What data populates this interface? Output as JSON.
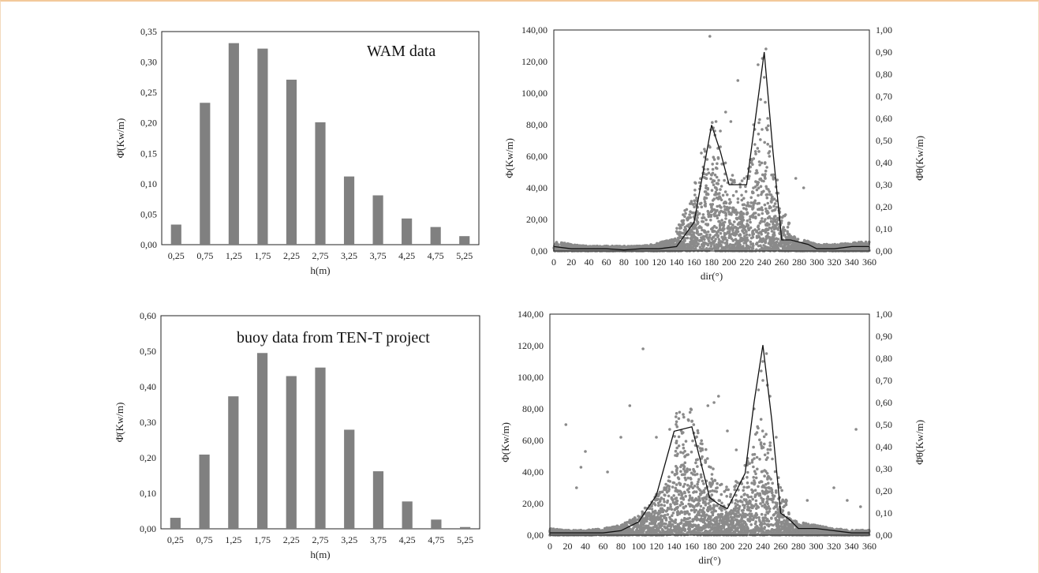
{
  "chart_data": [
    {
      "type": "bar",
      "annotation": "WAM data",
      "xlabel": "h(m)",
      "ylabel": "Φ̄(Kw/m)",
      "categories": [
        "0,25",
        "0,75",
        "1,25",
        "1,75",
        "2,25",
        "2,75",
        "3,25",
        "3,75",
        "4,25",
        "4,75",
        "5,25"
      ],
      "values": [
        0.033,
        0.233,
        0.331,
        0.322,
        0.271,
        0.201,
        0.112,
        0.081,
        0.043,
        0.029,
        0.014
      ],
      "ylim": [
        0,
        0.35
      ],
      "yticks": [
        "0,00",
        "0,05",
        "0,10",
        "0,15",
        "0,20",
        "0,25",
        "0,30",
        "0,35"
      ],
      "color": "#808080"
    },
    {
      "type": "scatter",
      "xlabel": "dir(°)",
      "ylabel": "Φ(Kw/m)",
      "y2label": "Φ̄θ(Kw/m)",
      "xlim": [
        0,
        360
      ],
      "ylim": [
        0,
        140
      ],
      "y2lim": [
        0,
        1
      ],
      "xticks": [
        "0",
        "20",
        "40",
        "60",
        "80",
        "100",
        "120",
        "140",
        "160",
        "180",
        "200",
        "220",
        "240",
        "260",
        "280",
        "300",
        "320",
        "340",
        "360"
      ],
      "yticks": [
        "0,00",
        "20,00",
        "40,00",
        "60,00",
        "80,00",
        "100,00",
        "120,00",
        "140,00"
      ],
      "y2ticks": [
        "0,00",
        "0,10",
        "0,20",
        "0,30",
        "0,40",
        "0,50",
        "0,60",
        "0,70",
        "0,80",
        "0,90",
        "1,00"
      ],
      "line": {
        "x": [
          0,
          20,
          40,
          60,
          80,
          100,
          120,
          140,
          160,
          170,
          180,
          190,
          200,
          210,
          220,
          230,
          240,
          250,
          260,
          270,
          280,
          290,
          300,
          320,
          340,
          360
        ],
        "y": [
          0.02,
          0.01,
          0.01,
          0.01,
          0.005,
          0.01,
          0.01,
          0.02,
          0.13,
          0.35,
          0.57,
          0.45,
          0.3,
          0.3,
          0.3,
          0.6,
          0.9,
          0.45,
          0.05,
          0.05,
          0.04,
          0.03,
          0.01,
          0.01,
          0.02,
          0.02
        ]
      },
      "scatter_profile": {
        "x": [
          0,
          20,
          40,
          60,
          80,
          100,
          120,
          140,
          150,
          160,
          170,
          180,
          190,
          200,
          210,
          220,
          230,
          240,
          250,
          260,
          270,
          280,
          290,
          300,
          320,
          340,
          360
        ],
        "y": [
          6,
          4,
          3,
          3,
          3,
          3,
          5,
          8,
          14,
          22,
          35,
          45,
          32,
          28,
          24,
          26,
          42,
          55,
          30,
          14,
          10,
          7,
          6,
          4,
          4,
          5,
          6
        ]
      },
      "scatter_outliers": {
        "x": [
          178,
          182,
          185,
          190,
          196,
          202,
          210,
          228,
          233,
          236,
          238,
          240,
          242,
          244,
          246,
          250,
          255,
          276,
          285,
          190,
          175,
          245
        ],
        "y": [
          136,
          78,
          82,
          76,
          88,
          82,
          108,
          80,
          118,
          96,
          122,
          110,
          128,
          84,
          60,
          48,
          45,
          46,
          40,
          66,
          58,
          62
        ]
      },
      "scatter_color": "#8a8a8a"
    },
    {
      "type": "bar",
      "annotation": "buoy data from TEN-T project",
      "xlabel": "h(m)",
      "ylabel": "Φ̄(Kw/m)",
      "categories": [
        "0,25",
        "0,75",
        "1,25",
        "1,75",
        "2,25",
        "2,75",
        "3,25",
        "3,75",
        "4,25",
        "4,75",
        "5,25"
      ],
      "values": [
        0.031,
        0.209,
        0.373,
        0.495,
        0.43,
        0.454,
        0.279,
        0.162,
        0.077,
        0.026,
        0.005
      ],
      "ylim": [
        0,
        0.6
      ],
      "yticks": [
        "0,00",
        "0,10",
        "0,20",
        "0,30",
        "0,40",
        "0,50",
        "0,60"
      ],
      "color": "#808080"
    },
    {
      "type": "scatter",
      "xlabel": "dir(°)",
      "ylabel": "Φ(Kw/m)",
      "y2label": "Φ̄θ(Kw/m)",
      "xlim": [
        0,
        360
      ],
      "ylim": [
        0,
        140
      ],
      "y2lim": [
        0,
        1
      ],
      "xticks": [
        "0",
        "20",
        "40",
        "60",
        "80",
        "100",
        "120",
        "140",
        "160",
        "180",
        "200",
        "220",
        "240",
        "260",
        "280",
        "300",
        "320",
        "340",
        "360"
      ],
      "yticks": [
        "0,00",
        "20,00",
        "40,00",
        "60,00",
        "80,00",
        "100,00",
        "120,00",
        "140,00"
      ],
      "y2ticks": [
        "0,00",
        "0,10",
        "0,20",
        "0,30",
        "0,40",
        "0,50",
        "0,60",
        "0,70",
        "0,80",
        "0,90",
        "1,00"
      ],
      "line": {
        "x": [
          0,
          20,
          40,
          60,
          80,
          100,
          120,
          140,
          160,
          170,
          180,
          190,
          200,
          210,
          220,
          230,
          240,
          250,
          260,
          270,
          280,
          290,
          300,
          320,
          340,
          360
        ],
        "y": [
          0.01,
          0.01,
          0.01,
          0.01,
          0.02,
          0.06,
          0.18,
          0.47,
          0.49,
          0.33,
          0.17,
          0.14,
          0.12,
          0.2,
          0.28,
          0.6,
          0.86,
          0.52,
          0.1,
          0.07,
          0.03,
          0.03,
          0.03,
          0.02,
          0.01,
          0.01
        ]
      },
      "scatter_profile": {
        "x": [
          0,
          20,
          40,
          60,
          80,
          100,
          110,
          120,
          130,
          140,
          150,
          160,
          170,
          180,
          190,
          200,
          210,
          220,
          230,
          240,
          250,
          260,
          270,
          280,
          290,
          300,
          320,
          340,
          360
        ],
        "y": [
          4,
          3,
          3,
          4,
          6,
          12,
          18,
          25,
          32,
          40,
          44,
          42,
          34,
          25,
          18,
          16,
          18,
          24,
          34,
          40,
          30,
          16,
          10,
          8,
          7,
          6,
          4,
          3,
          3
        ]
      },
      "scatter_outliers": {
        "x": [
          18,
          30,
          35,
          40,
          65,
          80,
          90,
          105,
          120,
          135,
          150,
          160,
          170,
          178,
          185,
          190,
          200,
          210,
          230,
          235,
          238,
          240,
          244,
          248,
          255,
          290,
          320,
          335,
          345,
          350,
          240,
          245
        ],
        "y": [
          70,
          30,
          43,
          53,
          40,
          62,
          82,
          118,
          62,
          67,
          65,
          72,
          58,
          82,
          84,
          88,
          66,
          54,
          80,
          92,
          104,
          98,
          115,
          88,
          62,
          22,
          30,
          22,
          67,
          18,
          110,
          95
        ]
      },
      "scatter_color": "#8a8a8a"
    }
  ]
}
